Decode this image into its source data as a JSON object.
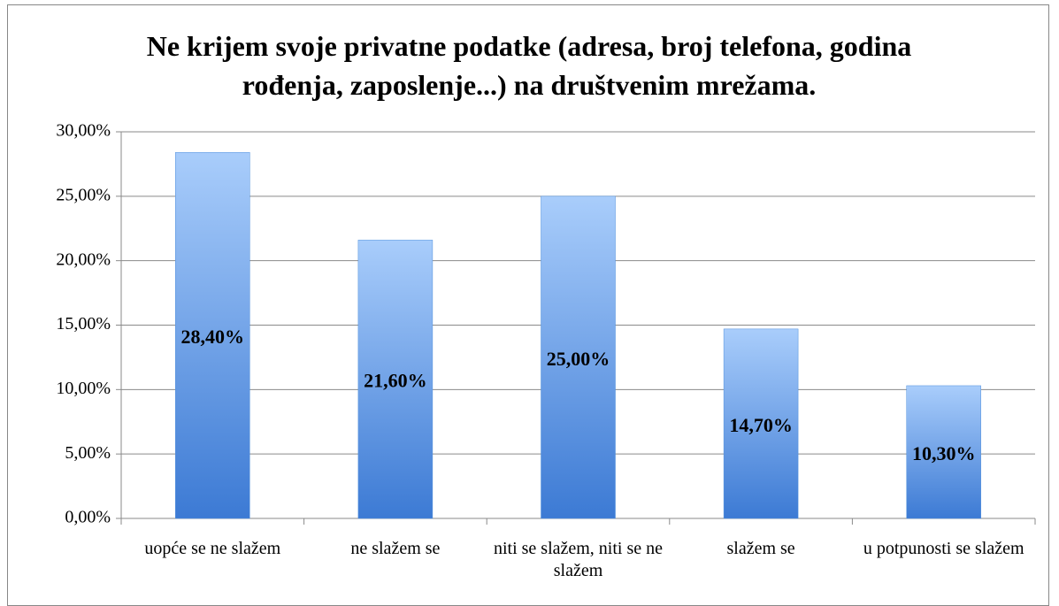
{
  "chart_data": {
    "type": "bar",
    "title": "Ne krijem svoje privatne podatke (adresa, broj telefona, godina rođenja, zaposlenje...) na društvenim mrežama.",
    "categories": [
      "uopće se ne slažem",
      "ne slažem se",
      "niti se slažem, niti se ne slažem",
      "slažem se",
      "u potpunosti se slažem"
    ],
    "values": [
      28.4,
      21.6,
      25,
      14.7,
      10.3
    ],
    "value_labels": [
      "28,40%",
      "21,60%",
      "25,00%",
      "14,70%",
      "10,30%"
    ],
    "color": "#4f8fdc",
    "ylim": [
      0,
      30
    ],
    "yticks": [
      {
        "value": 0,
        "label": "0,00%"
      },
      {
        "value": 5,
        "label": "5,00%"
      },
      {
        "value": 10,
        "label": "10,00%"
      },
      {
        "value": 15,
        "label": "15,00%"
      },
      {
        "value": 20,
        "label": "20,00%"
      },
      {
        "value": 25,
        "label": "25,00%"
      },
      {
        "value": 30,
        "label": "30,00%"
      }
    ],
    "grid": true
  }
}
